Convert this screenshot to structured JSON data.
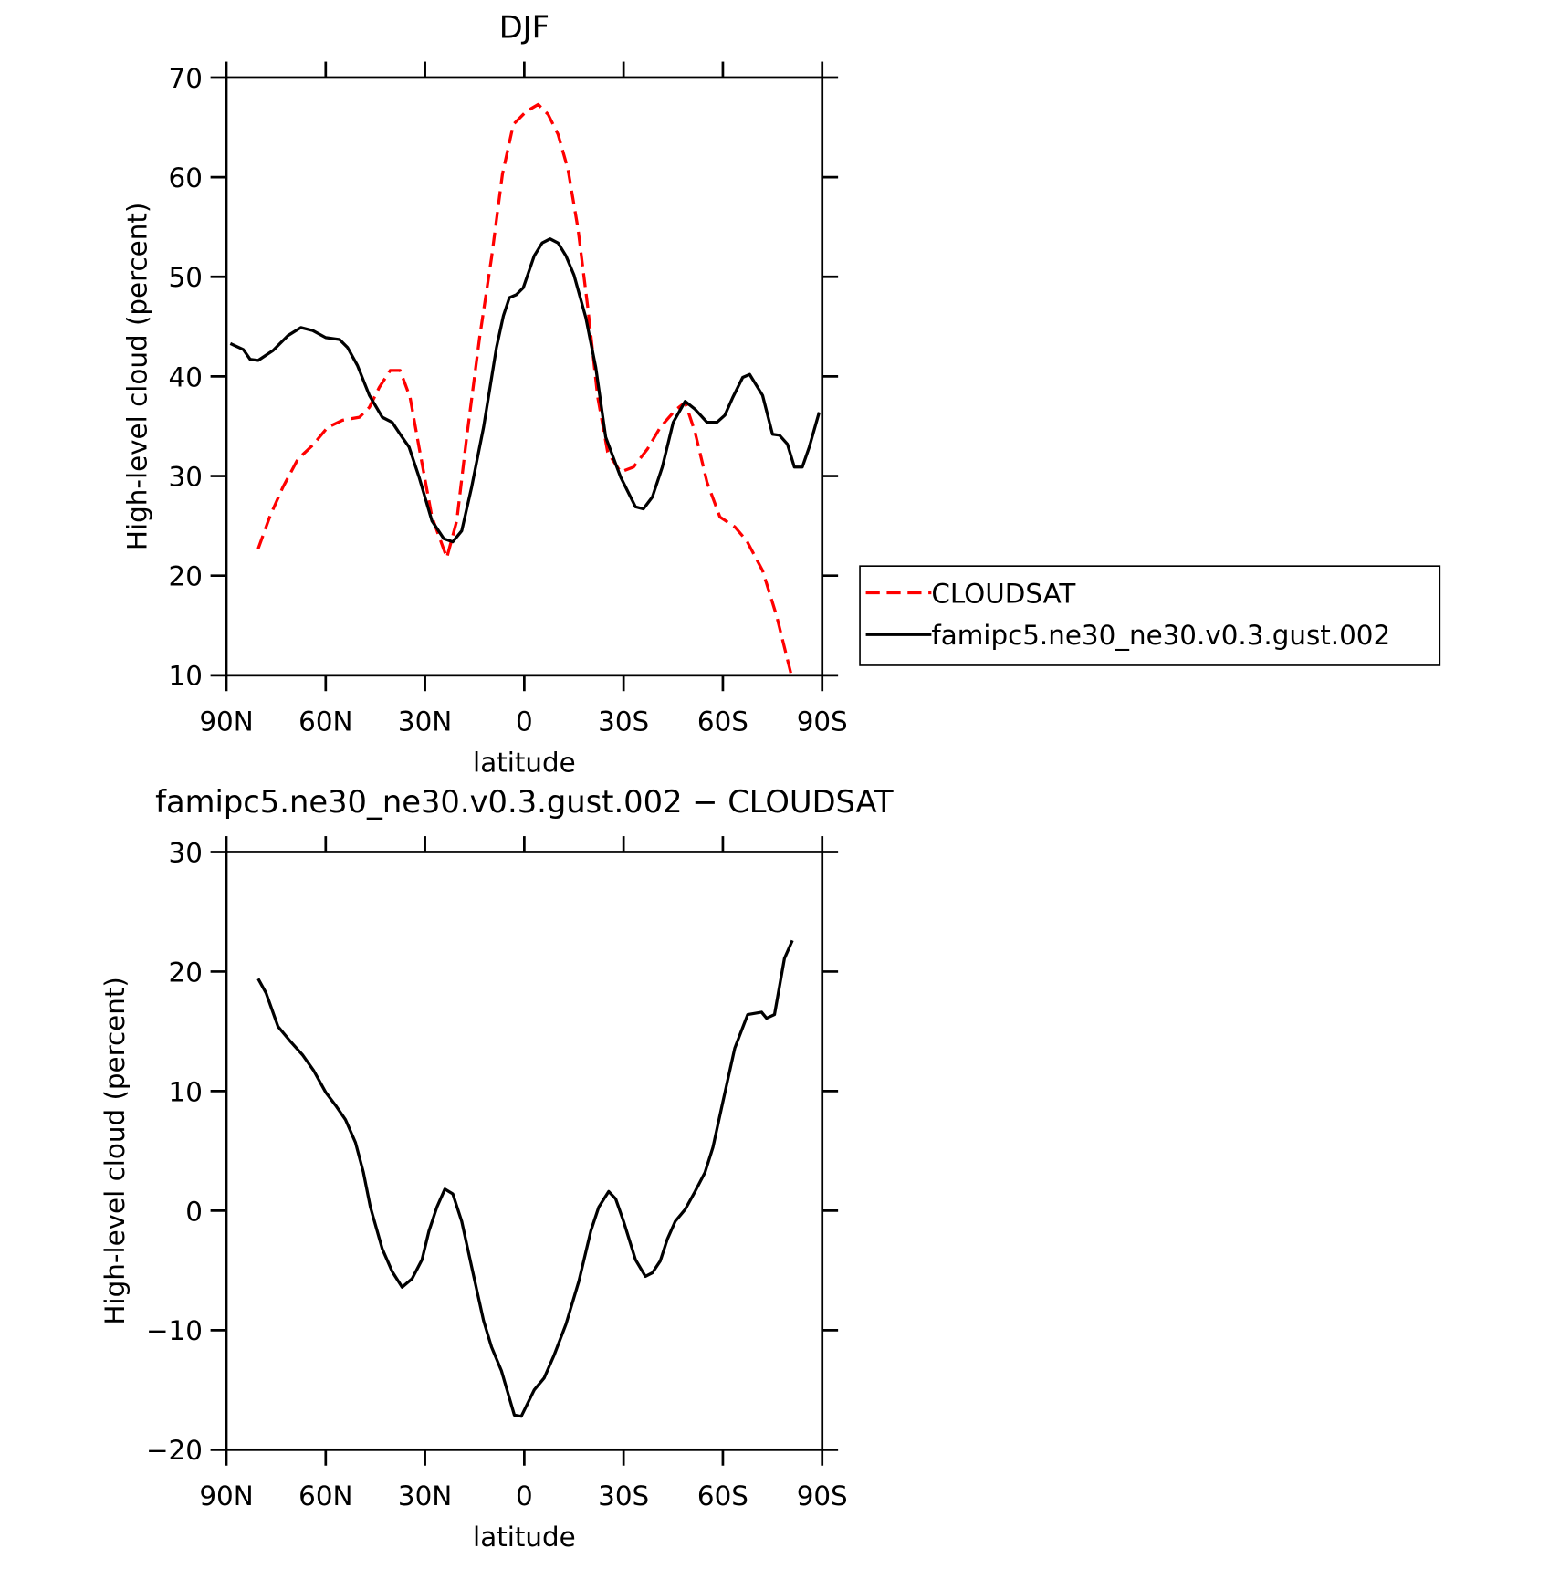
{
  "chart_data": [
    {
      "type": "line",
      "title": "DJF",
      "xlabel": "latitude",
      "ylabel": "High-level cloud (percent)",
      "xlim": [
        90,
        -90
      ],
      "xticks": [
        {
          "value": 90,
          "label": "90N"
        },
        {
          "value": 60,
          "label": "60N"
        },
        {
          "value": 30,
          "label": "30N"
        },
        0,
        {
          "value": -30,
          "label": "30S"
        },
        {
          "value": -60,
          "label": "60S"
        },
        {
          "value": -90,
          "label": "90S"
        }
      ],
      "ylim": [
        10,
        70
      ],
      "yticks": [
        10,
        20,
        30,
        40,
        50,
        60,
        70
      ],
      "legend": "right",
      "series": [
        {
          "name": "CLOUDSAT",
          "color": "#ff0000",
          "line_style": "dashed",
          "x": [
            80.4,
            76.8,
            72.9,
            68.4,
            63.9,
            59.4,
            54.9,
            49.8,
            46.8,
            43.8,
            40.5,
            37.5,
            34.5,
            31.8,
            27.9,
            23.4,
            20.4,
            17.4,
            13.5,
            9.9,
            6.6,
            3.3,
            -0.6,
            -4.2,
            -7.2,
            -10.2,
            -13.2,
            -16.2,
            -19.2,
            -22.2,
            -25.2,
            -29.1,
            -33,
            -37.2,
            -41.1,
            -45.6,
            -48.6,
            -51.6,
            -55.2,
            -59.1,
            -63.6,
            -67.2,
            -72,
            -76.2,
            -80.7
          ],
          "values": [
            22.7,
            26,
            28.9,
            31.7,
            33.1,
            34.9,
            35.6,
            35.9,
            36.9,
            38.9,
            40.6,
            40.6,
            37.9,
            32.9,
            25.9,
            21.8,
            25.5,
            33.9,
            43.9,
            51.9,
            60.3,
            65.3,
            66.6,
            67.3,
            66.3,
            64.3,
            60.8,
            54.9,
            46.9,
            37.9,
            32.4,
            30.4,
            30.9,
            32.7,
            34.9,
            36.6,
            37.4,
            34.4,
            29.4,
            25.9,
            24.9,
            23.5,
            20.5,
            16,
            10
          ]
        },
        {
          "name": "famipc5.ne30_ne30.v0.3.gust.002",
          "color": "#000000",
          "line_style": "solid",
          "x": [
            88.8,
            84.9,
            82.8,
            80.4,
            75.9,
            71.4,
            67.5,
            63.9,
            60,
            55.8,
            53.4,
            50.4,
            46.8,
            42.9,
            39.9,
            36.9,
            34.8,
            31.8,
            27.9,
            24.3,
            21.6,
            18.9,
            15.9,
            12.3,
            8.4,
            6.3,
            4.5,
            2.4,
            0.3,
            -3,
            -5.4,
            -7.8,
            -10.2,
            -12.6,
            -15,
            -18.6,
            -21.6,
            -24.6,
            -29.1,
            -33.6,
            -36,
            -38.7,
            -41.7,
            -45,
            -48.6,
            -51.6,
            -55.2,
            -58.2,
            -60.6,
            -63,
            -66,
            -68.1,
            -72,
            -75,
            -77.1,
            -79.5,
            -81.6,
            -84,
            -86.1,
            -89.1
          ],
          "values": [
            43.3,
            42.7,
            41.7,
            41.6,
            42.6,
            44.1,
            44.9,
            44.6,
            43.9,
            43.7,
            42.9,
            41.1,
            38.1,
            35.9,
            35.4,
            33.9,
            32.9,
            29.9,
            25.5,
            23.7,
            23.4,
            24.5,
            28.9,
            34.9,
            42.9,
            46.1,
            47.9,
            48.2,
            48.9,
            52.1,
            53.4,
            53.8,
            53.4,
            52.1,
            50.2,
            45.9,
            40.9,
            33.9,
            29.9,
            26.9,
            26.7,
            27.9,
            30.9,
            35.4,
            37.5,
            36.7,
            35.4,
            35.4,
            36.1,
            37.9,
            39.9,
            40.2,
            38.1,
            34.2,
            34.1,
            33.2,
            30.9,
            30.9,
            32.9,
            36.4
          ]
        }
      ]
    },
    {
      "type": "line",
      "title": "famipc5.ne30_ne30.v0.3.gust.002 − CLOUDSAT",
      "xlabel": "latitude",
      "ylabel": "High-level cloud (percent)",
      "xlim": [
        90,
        -90
      ],
      "xticks": [
        {
          "value": 90,
          "label": "90N"
        },
        {
          "value": 60,
          "label": "60N"
        },
        {
          "value": 30,
          "label": "30N"
        },
        0,
        {
          "value": -30,
          "label": "30S"
        },
        {
          "value": -60,
          "label": "60S"
        },
        {
          "value": -90,
          "label": "90S"
        }
      ],
      "ylim": [
        -20,
        30
      ],
      "yticks": [
        {
          "value": -20,
          "label": "−20"
        },
        {
          "value": -10,
          "label": "−10"
        },
        0,
        10,
        20,
        30
      ],
      "series": [
        {
          "color": "#000000",
          "line_style": "solid",
          "x": [
            80.4,
            78,
            74.4,
            70.8,
            66.9,
            63.6,
            60,
            57,
            54,
            51,
            48.6,
            46.5,
            42.9,
            39.9,
            36.9,
            33.9,
            30.9,
            28.8,
            26.4,
            24,
            21.6,
            18.9,
            15.9,
            12.3,
            9.9,
            6.9,
            3,
            0.9,
            -3,
            -6,
            -9,
            -12.6,
            -16.5,
            -20.1,
            -22.5,
            -25.5,
            -27.6,
            -30,
            -33.6,
            -36.6,
            -38.7,
            -41.1,
            -43.2,
            -45.6,
            -48.6,
            -51.6,
            -54.6,
            -57,
            -60,
            -63.6,
            -67.5,
            -71.7,
            -73.2,
            -75.6,
            -78.6,
            -81
          ],
          "values": [
            19.4,
            18.2,
            15.4,
            14.2,
            13,
            11.7,
            9.9,
            8.8,
            7.6,
            5.7,
            3.2,
            0.3,
            -3.2,
            -5.1,
            -6.4,
            -5.7,
            -4.1,
            -1.7,
            0.3,
            1.8,
            1.4,
            -0.9,
            -4.7,
            -9.2,
            -11.4,
            -13.4,
            -17.1,
            -17.2,
            -15,
            -14,
            -12.1,
            -9.5,
            -5.9,
            -1.7,
            0.3,
            1.6,
            1,
            -0.9,
            -4.1,
            -5.5,
            -5.2,
            -4.2,
            -2.4,
            -0.9,
            0.1,
            1.6,
            3.2,
            5.3,
            9.1,
            13.6,
            16.4,
            16.6,
            16.1,
            16.4,
            21.1,
            22.6
          ]
        }
      ]
    }
  ]
}
